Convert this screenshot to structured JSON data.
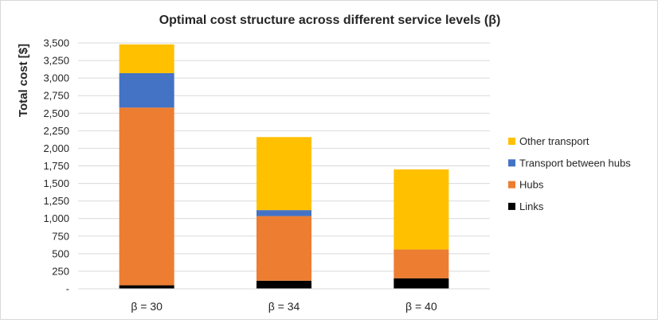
{
  "chart_data": {
    "type": "bar",
    "stacked": true,
    "title": "Optimal cost structure across different service levels (β)",
    "xlabel": "",
    "ylabel": "Total cost [$]",
    "ylim": [
      0,
      3500
    ],
    "yticks": [
      0,
      250,
      500,
      750,
      1000,
      1250,
      1500,
      1750,
      2000,
      2250,
      2500,
      2750,
      3000,
      3250,
      3500
    ],
    "ytick_labels": [
      "-",
      "250",
      "500",
      "750",
      "1,000",
      "1,250",
      "1,500",
      "1,750",
      "2,000",
      "2,250",
      "2,500",
      "2,750",
      "3,000",
      "3,250",
      "3,500"
    ],
    "categories": [
      "β = 30",
      "β = 34",
      "β = 40"
    ],
    "series": [
      {
        "name": "Links",
        "color": "#000000",
        "values": [
          50,
          115,
          150
        ]
      },
      {
        "name": "Hubs",
        "color": "#ED7D31",
        "values": [
          2530,
          920,
          410
        ]
      },
      {
        "name": "Transport between hubs",
        "color": "#4472C4",
        "values": [
          490,
          85,
          0
        ]
      },
      {
        "name": "Other transport",
        "color": "#FFC000",
        "values": [
          410,
          1040,
          1140
        ]
      }
    ],
    "legend_position": "right",
    "grid": true
  }
}
